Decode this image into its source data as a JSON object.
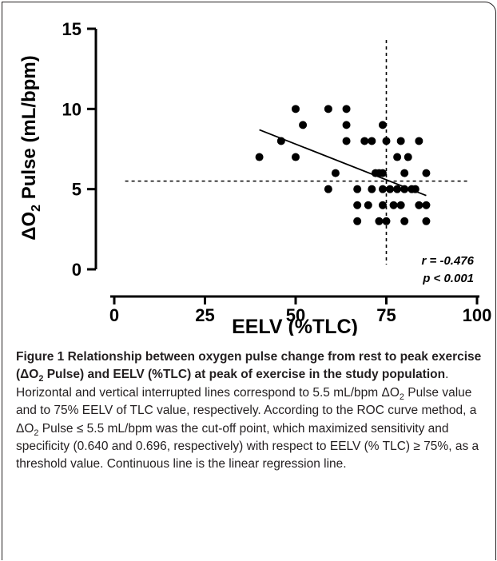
{
  "chart_data": {
    "type": "scatter",
    "title": "",
    "xlabel": "EELV (%TLC)",
    "ylabel_parts": {
      "prefix": "ΔO",
      "sub": "2",
      "suffix": " Pulse (mL/bpm)"
    },
    "xlim": [
      0,
      100
    ],
    "ylim": [
      0,
      15
    ],
    "x_ticks": [
      0,
      25,
      50,
      75,
      100
    ],
    "y_ticks": [
      0,
      5,
      10,
      15
    ],
    "x_tick_labels": [
      "0",
      "25",
      "50",
      "75",
      "100"
    ],
    "y_tick_labels": [
      "0",
      "5",
      "10",
      "15"
    ],
    "grid": false,
    "points": [
      {
        "x": 40,
        "y": 7
      },
      {
        "x": 46,
        "y": 8
      },
      {
        "x": 50,
        "y": 10
      },
      {
        "x": 50,
        "y": 7
      },
      {
        "x": 52,
        "y": 9
      },
      {
        "x": 59,
        "y": 10
      },
      {
        "x": 59,
        "y": 5
      },
      {
        "x": 61,
        "y": 6
      },
      {
        "x": 64,
        "y": 10
      },
      {
        "x": 64,
        "y": 9
      },
      {
        "x": 64,
        "y": 8
      },
      {
        "x": 67,
        "y": 5
      },
      {
        "x": 67,
        "y": 4
      },
      {
        "x": 67,
        "y": 3
      },
      {
        "x": 69,
        "y": 8
      },
      {
        "x": 70,
        "y": 4
      },
      {
        "x": 71,
        "y": 8
      },
      {
        "x": 71,
        "y": 5
      },
      {
        "x": 72,
        "y": 6
      },
      {
        "x": 73,
        "y": 6
      },
      {
        "x": 73,
        "y": 3
      },
      {
        "x": 74,
        "y": 9
      },
      {
        "x": 74,
        "y": 6
      },
      {
        "x": 74,
        "y": 5
      },
      {
        "x": 74,
        "y": 4
      },
      {
        "x": 75,
        "y": 8
      },
      {
        "x": 75,
        "y": 3
      },
      {
        "x": 76,
        "y": 5
      },
      {
        "x": 77,
        "y": 4
      },
      {
        "x": 78,
        "y": 7
      },
      {
        "x": 78,
        "y": 5
      },
      {
        "x": 79,
        "y": 8
      },
      {
        "x": 79,
        "y": 4
      },
      {
        "x": 80,
        "y": 6
      },
      {
        "x": 80,
        "y": 5
      },
      {
        "x": 80,
        "y": 3
      },
      {
        "x": 81,
        "y": 7
      },
      {
        "x": 82,
        "y": 5
      },
      {
        "x": 83,
        "y": 5
      },
      {
        "x": 84,
        "y": 8
      },
      {
        "x": 84,
        "y": 4
      },
      {
        "x": 86,
        "y": 6
      },
      {
        "x": 86,
        "y": 4
      },
      {
        "x": 86,
        "y": 3
      }
    ],
    "regression_line": {
      "x": [
        40,
        86
      ],
      "y": [
        8.7,
        4.6
      ]
    },
    "reference_lines": {
      "horizontal_y": 5.5,
      "vertical_x": 75
    },
    "annotation_r": "r = -0.476",
    "annotation_p": "p < 0.001",
    "colors": {
      "points": "#000000",
      "lines": "#000000"
    }
  },
  "caption": {
    "title_bold": "Figure 1 Relationship between oxygen pulse change from rest to peak exercise (ΔO",
    "title_bold_sub": "2",
    "title_bold_end": " Pulse) and EELV (%TLC) at peak of exercise in the study population",
    "text_1": ". Horizontal and vertical interrupted lines correspond to 5.5 mL/bpm ΔO",
    "text_1_sub": "2",
    "text_2": " Pulse value and to 75% EELV of TLC value, respectively. According to the ROC curve method, a ΔO",
    "text_2_sub": "2",
    "text_3": " Pulse ≤ 5.5 mL/bpm was the cut-off point, which maximized sensitivity and specificity (0.640 and 0.696, respectively) with respect to EELV (% TLC) ≥ 75%, as a threshold value. Continuous line is the linear regression line."
  }
}
